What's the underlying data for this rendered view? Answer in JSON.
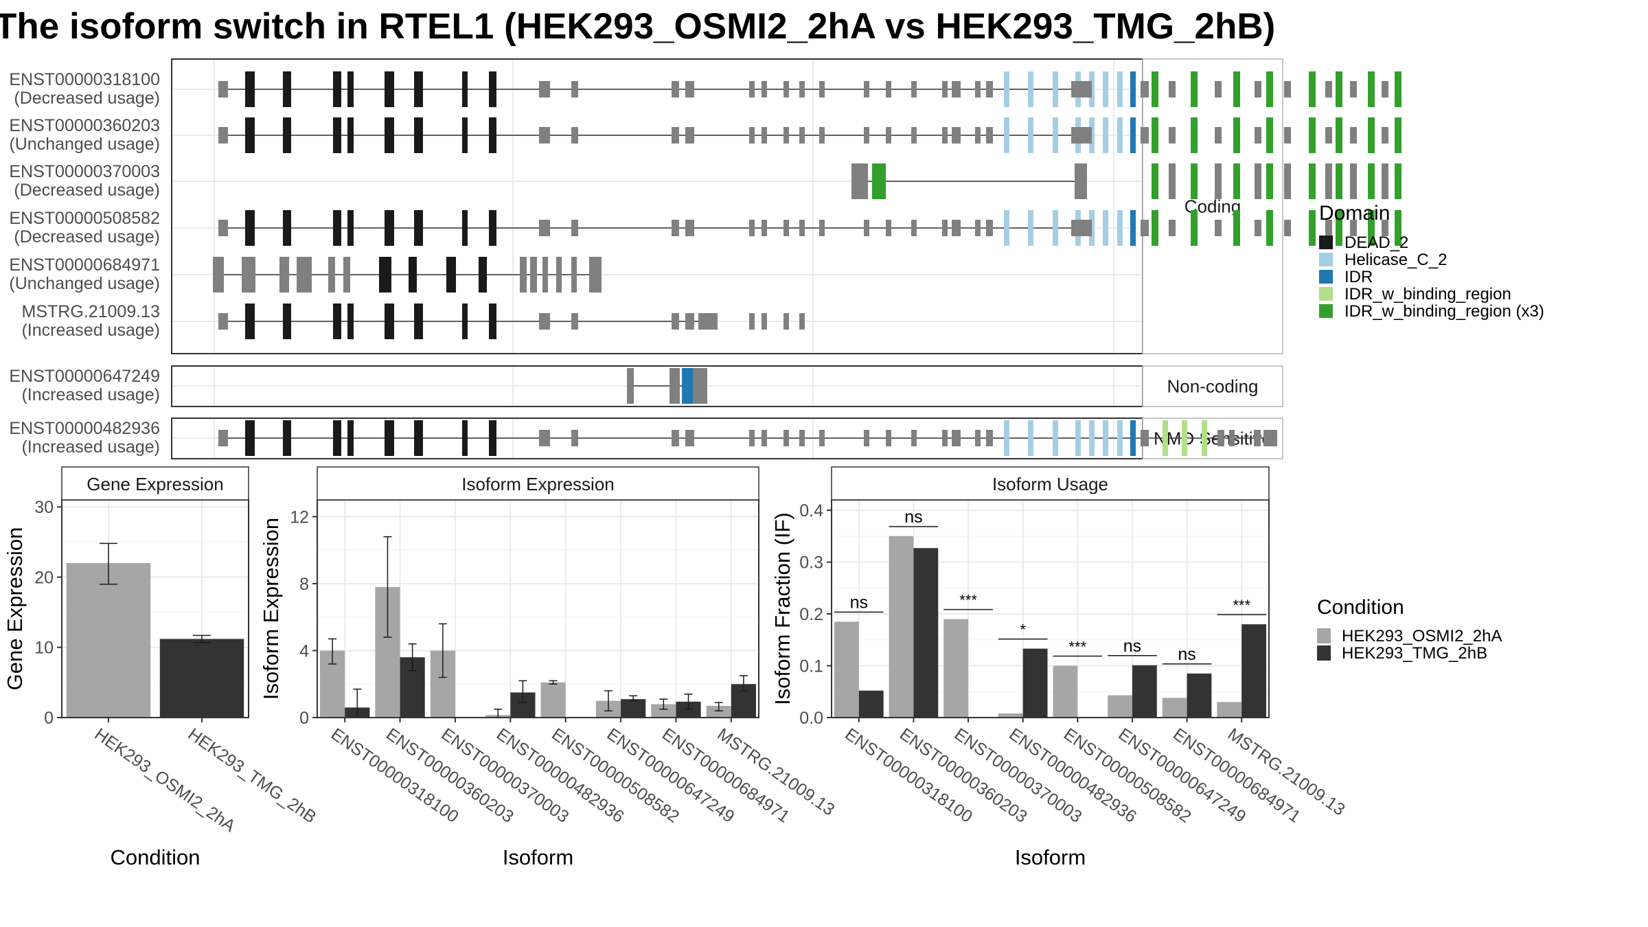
{
  "title": "The isoform switch in RTEL1 (HEK293_OSMI2_2hA vs HEK293_TMG_2hB)",
  "colors": {
    "DEAD_2": "#1a1a1a",
    "Helicase_C_2": "#a6cee3",
    "IDR": "#1f78b4",
    "IDR_w_binding_region": "#b2df8a",
    "IDR_w_binding_region (x3)": "#33a02c",
    "exon": "#808080",
    "cond1": "#a6a6a6",
    "cond2": "#333333"
  },
  "structure": {
    "panels": [
      {
        "label": "Coding",
        "transcripts": [
          {
            "id": "ENST00000318100",
            "usage": "(Decreased usage)",
            "type": "full"
          },
          {
            "id": "ENST00000360203",
            "usage": "(Unchanged usage)",
            "type": "full"
          },
          {
            "id": "ENST00000370003",
            "usage": "(Decreased usage)",
            "type": "short"
          },
          {
            "id": "ENST00000508582",
            "usage": "(Decreased usage)",
            "type": "full"
          },
          {
            "id": "ENST00000684971",
            "usage": "(Unchanged usage)",
            "type": "trunc1"
          },
          {
            "id": "MSTRG.21009.13",
            "usage": "(Increased usage)",
            "type": "trunc2"
          }
        ]
      },
      {
        "label": "Non-coding",
        "transcripts": [
          {
            "id": "ENST00000647249",
            "usage": "(Increased usage)",
            "type": "noncoding"
          }
        ]
      },
      {
        "label": "NMD Sensitive",
        "transcripts": [
          {
            "id": "ENST00000482936",
            "usage": "(Increased usage)",
            "type": "nmd"
          }
        ]
      }
    ],
    "domain_legend_title": "Domain",
    "domains": [
      "DEAD_2",
      "Helicase_C_2",
      "IDR",
      "IDR_w_binding_region",
      "IDR_w_binding_region (x3)"
    ]
  },
  "condition_legend": {
    "title": "Condition",
    "items": [
      "HEK293_OSMI2_2hA",
      "HEK293_TMG_2hB"
    ]
  },
  "chart_data": [
    {
      "type": "bar",
      "title": "Gene Expression",
      "xlabel": "Condition",
      "ylabel": "Gene Expression",
      "ylim": [
        0,
        31
      ],
      "yticks": [
        0,
        10,
        20,
        30
      ],
      "categories": [
        "HEK293_OSMI2_2hA",
        "HEK293_TMG_2hB"
      ],
      "values": [
        22,
        11.2
      ],
      "err_low": [
        19,
        10.7
      ],
      "err_high": [
        24.8,
        11.7
      ]
    },
    {
      "type": "bar",
      "title": "Isoform Expression",
      "xlabel": "Isoform",
      "ylabel": "Isoform Expression",
      "ylim": [
        0,
        13
      ],
      "yticks": [
        0,
        4,
        8,
        12
      ],
      "categories": [
        "ENST00000318100",
        "ENST00000360203",
        "ENST00000370003",
        "ENST00000482936",
        "ENST00000508582",
        "ENST00000647249",
        "ENST00000684971",
        "MSTRG.21009.13"
      ],
      "series": [
        {
          "name": "HEK293_OSMI2_2hA",
          "values": [
            4.0,
            7.8,
            4.0,
            0.15,
            2.1,
            1.0,
            0.8,
            0.7
          ],
          "err_low": [
            3.2,
            4.8,
            2.4,
            0.0,
            2.0,
            0.4,
            0.5,
            0.4
          ],
          "err_high": [
            4.7,
            10.8,
            5.6,
            0.5,
            2.2,
            1.6,
            1.1,
            0.9
          ]
        },
        {
          "name": "HEK293_TMG_2hB",
          "values": [
            0.6,
            3.6,
            0.0,
            1.5,
            0.0,
            1.1,
            0.95,
            2.0
          ],
          "err_low": [
            0.0,
            2.8,
            0.0,
            0.9,
            0.0,
            1.0,
            0.5,
            1.6
          ],
          "err_high": [
            1.7,
            4.4,
            0.0,
            2.2,
            0.0,
            1.3,
            1.4,
            2.5
          ]
        }
      ]
    },
    {
      "type": "bar",
      "title": "Isoform Usage",
      "xlabel": "Isoform",
      "ylabel": "Isoform Fraction (IF)",
      "ylim": [
        0,
        0.42
      ],
      "yticks": [
        0.0,
        0.1,
        0.2,
        0.3,
        0.4
      ],
      "categories": [
        "ENST00000318100",
        "ENST00000360203",
        "ENST00000370003",
        "ENST00000482936",
        "ENST00000508582",
        "ENST00000647249",
        "ENST00000684971",
        "MSTRG.21009.13"
      ],
      "series": [
        {
          "name": "HEK293_OSMI2_2hA",
          "values": [
            0.185,
            0.35,
            0.19,
            0.008,
            0.1,
            0.043,
            0.038,
            0.03
          ]
        },
        {
          "name": "HEK293_TMG_2hB",
          "values": [
            0.052,
            0.327,
            0.0,
            0.133,
            0.0,
            0.101,
            0.085,
            0.18
          ]
        }
      ],
      "significance": [
        "ns",
        "ns",
        "***",
        "*",
        "***",
        "ns",
        "ns",
        "***"
      ]
    }
  ]
}
